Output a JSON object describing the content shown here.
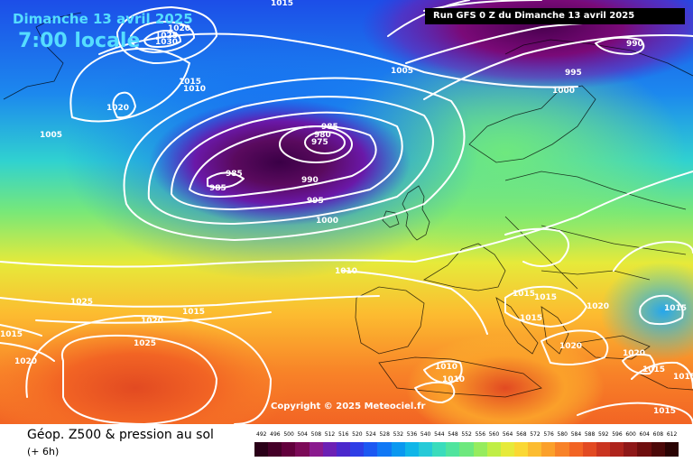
{
  "header": {
    "date": "Dimanche 13 avril 2025",
    "time": "7:00 locale",
    "run": "Run GFS 0 Z du Dimanche 13 avril 2025"
  },
  "copyright": "Copyright © 2025 Meteociel.fr",
  "footer": {
    "title": "Géop. Z500 & pression au sol",
    "subtitle": "(+ 6h)"
  },
  "legend": {
    "ticks": [
      "492",
      "496",
      "500",
      "504",
      "508",
      "512",
      "516",
      "520",
      "524",
      "528",
      "532",
      "536",
      "540",
      "544",
      "548",
      "552",
      "556",
      "560",
      "564",
      "568",
      "572",
      "576",
      "580",
      "584",
      "588",
      "592",
      "596",
      "600",
      "604",
      "608",
      "612"
    ],
    "colors": [
      "#2a0018",
      "#450028",
      "#62003c",
      "#7c0a58",
      "#8a1a8e",
      "#6c20b4",
      "#4b28cc",
      "#2e3ee6",
      "#1c58f2",
      "#1078f5",
      "#0a98f0",
      "#10b6e8",
      "#26cad8",
      "#3adcbc",
      "#50e49e",
      "#6ee87e",
      "#96ec5e",
      "#c0ee46",
      "#e6ea3a",
      "#fad834",
      "#fcbc30",
      "#fba02a",
      "#f88228",
      "#f26424",
      "#e24a22",
      "#ca3420",
      "#ae241c",
      "#8e1818",
      "#6e0e0e",
      "#4c0808",
      "#2a0303"
    ]
  },
  "isobars": [
    {
      "value": "1015",
      "kind": "pressure-label"
    },
    {
      "value": "1020",
      "kind": "pressure-label"
    },
    {
      "value": "1025",
      "kind": "pressure-label"
    },
    {
      "value": "1030",
      "kind": "pressure-label"
    },
    {
      "value": "1015",
      "kind": "pressure-label"
    },
    {
      "value": "1010",
      "kind": "pressure-label"
    },
    {
      "value": "1020",
      "kind": "pressure-label"
    },
    {
      "value": "1005",
      "kind": "pressure-label"
    },
    {
      "value": "1005",
      "kind": "pressure-label"
    },
    {
      "value": "985",
      "kind": "pressure-label"
    },
    {
      "value": "980",
      "kind": "pressure-label"
    },
    {
      "value": "975",
      "kind": "pressure-label"
    },
    {
      "value": "985",
      "kind": "pressure-label"
    },
    {
      "value": "985",
      "kind": "pressure-label"
    },
    {
      "value": "990",
      "kind": "pressure-label"
    },
    {
      "value": "995",
      "kind": "pressure-label"
    },
    {
      "value": "1000",
      "kind": "pressure-label"
    },
    {
      "value": "990",
      "kind": "pressure-label"
    },
    {
      "value": "995",
      "kind": "pressure-label"
    },
    {
      "value": "1000",
      "kind": "pressure-label"
    },
    {
      "value": "1010",
      "kind": "pressure-label"
    },
    {
      "value": "1025",
      "kind": "pressure-label"
    },
    {
      "value": "1020",
      "kind": "pressure-label"
    },
    {
      "value": "1015",
      "kind": "pressure-label"
    },
    {
      "value": "1015",
      "kind": "pressure-label"
    },
    {
      "value": "1025",
      "kind": "pressure-label"
    },
    {
      "value": "1020",
      "kind": "pressure-label"
    },
    {
      "value": "1015",
      "kind": "pressure-label"
    },
    {
      "value": "1015",
      "kind": "pressure-label"
    },
    {
      "value": "1020",
      "kind": "pressure-label"
    },
    {
      "value": "1015",
      "kind": "pressure-label"
    },
    {
      "value": "1020",
      "kind": "pressure-label"
    },
    {
      "value": "1020",
      "kind": "pressure-label"
    },
    {
      "value": "1010",
      "kind": "pressure-label"
    },
    {
      "value": "1010",
      "kind": "pressure-label"
    },
    {
      "value": "1015",
      "kind": "pressure-label"
    },
    {
      "value": "1015",
      "kind": "pressure-label"
    },
    {
      "value": "1015",
      "kind": "pressure-label"
    },
    {
      "value": "1015",
      "kind": "pressure-label"
    }
  ]
}
